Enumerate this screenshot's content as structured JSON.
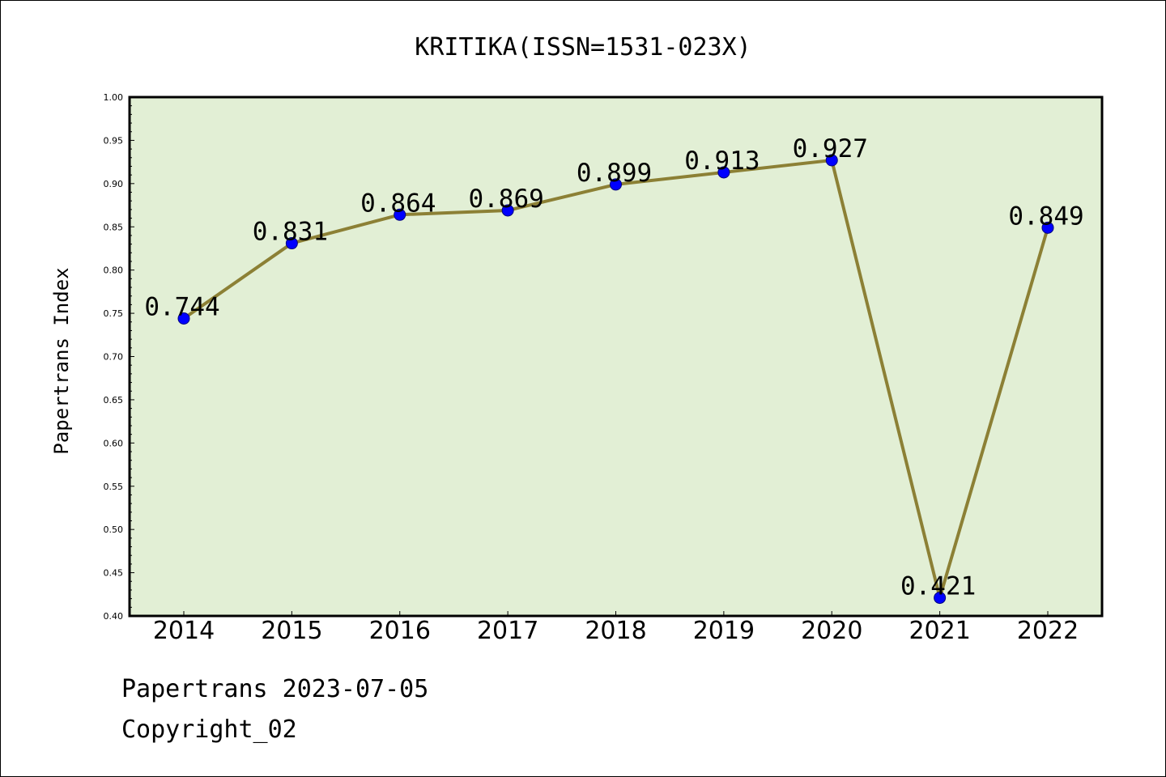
{
  "colors": {
    "plot_background": "#e2efd5",
    "line": "#8c8035",
    "marker": "#0000ff",
    "marker_edge": "#000080"
  },
  "chart_data": {
    "type": "line",
    "title": "KRITIKA(ISSN=1531-023X)",
    "xlabel": "",
    "ylabel": "Papertrans Index",
    "categories": [
      "2014",
      "2015",
      "2016",
      "2017",
      "2018",
      "2019",
      "2020",
      "2021",
      "2022"
    ],
    "values": [
      0.744,
      0.831,
      0.864,
      0.869,
      0.899,
      0.913,
      0.927,
      0.421,
      0.849
    ],
    "data_labels": [
      "0.744",
      "0.831",
      "0.864",
      "0.869",
      "0.899",
      "0.913",
      "0.927",
      "0.421",
      "0.849"
    ],
    "ylim": [
      0.4,
      1.0
    ],
    "yticks": [
      "0.40",
      "0.45",
      "0.50",
      "0.55",
      "0.60",
      "0.65",
      "0.70",
      "0.75",
      "0.80",
      "0.85",
      "0.90",
      "0.95",
      "1.00"
    ],
    "grid": false,
    "legend": "none"
  },
  "footer": {
    "line1": "Papertrans 2023-07-05",
    "line2": "Copyright_02"
  }
}
